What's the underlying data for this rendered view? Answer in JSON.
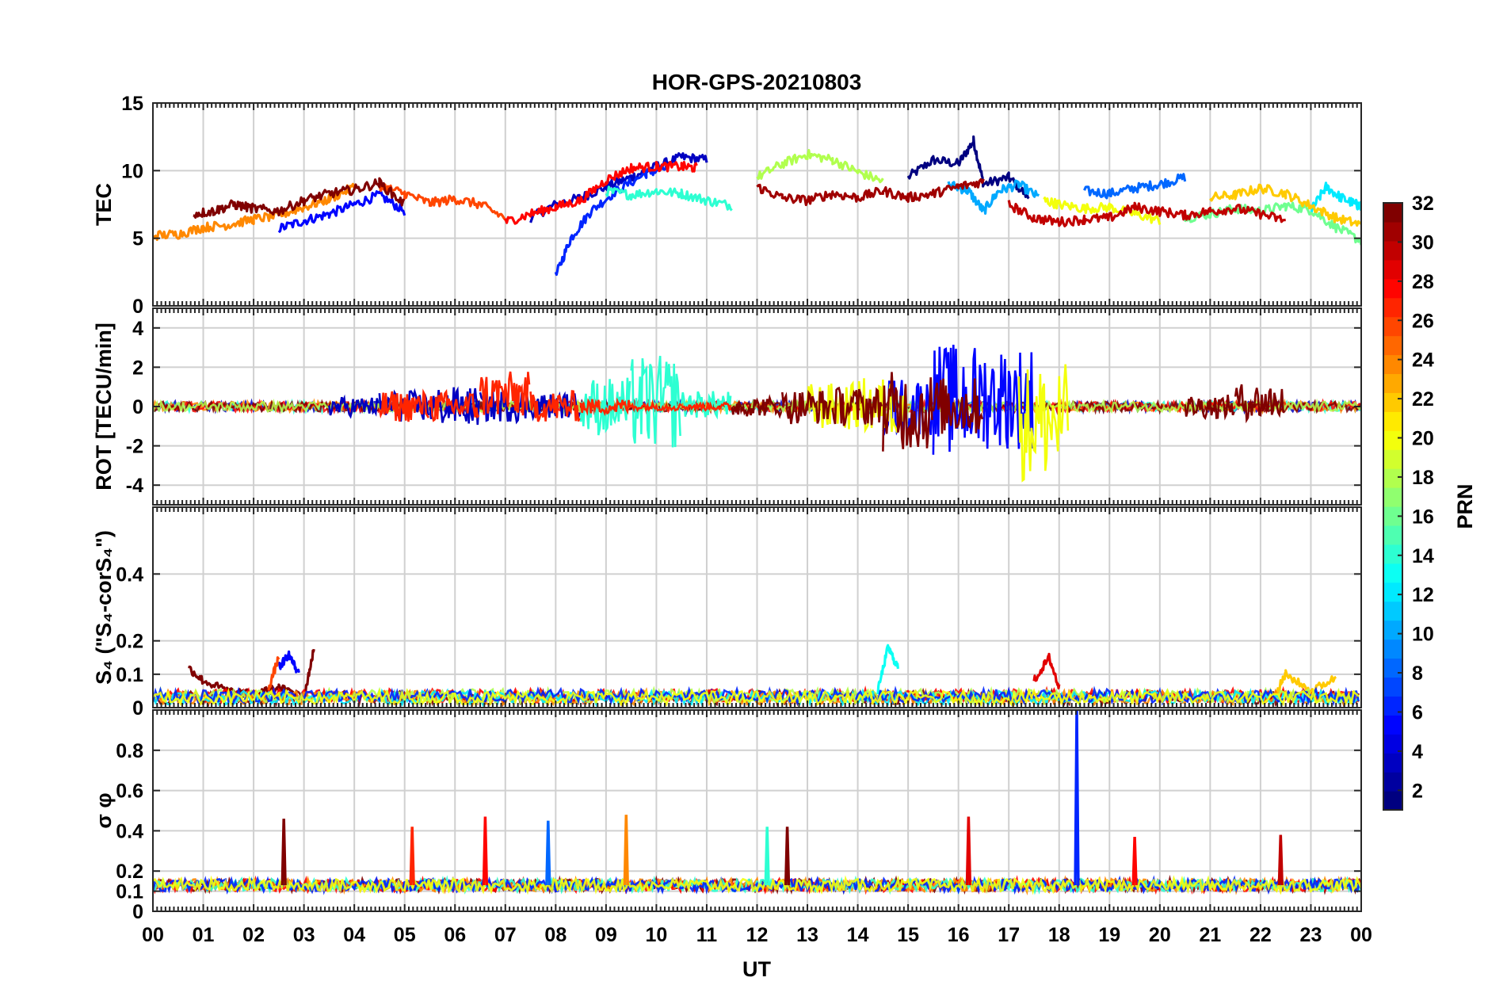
{
  "chart_data": {
    "type": "line",
    "title": "HOR-GPS-20210803",
    "xlabel": "UT",
    "x_ticks": [
      "00",
      "01",
      "02",
      "03",
      "04",
      "05",
      "06",
      "07",
      "08",
      "09",
      "10",
      "11",
      "12",
      "13",
      "14",
      "15",
      "16",
      "17",
      "18",
      "19",
      "20",
      "21",
      "22",
      "23",
      "00"
    ],
    "xlim": [
      0,
      24
    ],
    "grid": true,
    "panels": [
      {
        "id": "tec",
        "ylabel": "TEC",
        "ylim": [
          0,
          15
        ],
        "yticks": [
          "0",
          "5",
          "10",
          "15"
        ],
        "ytick_values": [
          0,
          5,
          10,
          15
        ],
        "series": [
          {
            "name": "PRN 1",
            "prn": 1,
            "x": [
              15.0,
              15.5,
              16.0,
              16.3,
              16.5,
              17.0,
              17.4
            ],
            "y": [
              9.5,
              10.8,
              10.5,
              12.2,
              9.0,
              9.5,
              8.0
            ]
          },
          {
            "name": "PRN 3",
            "prn": 3,
            "x": [
              7.5,
              8.0,
              8.5,
              9.0,
              9.5,
              10.0,
              10.5,
              11.0
            ],
            "y": [
              6.5,
              7.5,
              8.0,
              8.8,
              9.5,
              10.3,
              11.0,
              10.8
            ]
          },
          {
            "name": "PRN 5",
            "prn": 5,
            "x": [
              2.5,
              3.0,
              3.5,
              4.0,
              4.5,
              5.0
            ],
            "y": [
              5.7,
              6.3,
              6.8,
              7.5,
              8.2,
              7.0
            ]
          },
          {
            "name": "PRN 6",
            "prn": 6,
            "x": [
              8.0,
              8.3,
              8.7,
              9.2,
              9.8,
              10.2
            ],
            "y": [
              2.2,
              5.0,
              7.0,
              8.5,
              9.8,
              10.2
            ]
          },
          {
            "name": "PRN 8",
            "prn": 8,
            "x": [
              18.5,
              19.0,
              19.5,
              20.0,
              20.5
            ],
            "y": [
              8.5,
              8.3,
              8.7,
              9.0,
              9.5
            ]
          },
          {
            "name": "PRN 10",
            "prn": 10,
            "x": [
              15.8,
              16.2,
              16.5,
              16.8,
              17.2,
              17.6
            ],
            "y": [
              9.0,
              8.5,
              7.0,
              8.5,
              9.0,
              8.0
            ]
          },
          {
            "name": "PRN 12",
            "prn": 12,
            "x": [
              23.0,
              23.3,
              23.6,
              23.9,
              24.0
            ],
            "y": [
              7.0,
              8.8,
              8.0,
              7.5,
              7.3
            ]
          },
          {
            "name": "PRN 14",
            "prn": 14,
            "x": [
              9.0,
              9.5,
              10.0,
              10.5,
              11.0,
              11.5
            ],
            "y": [
              8.5,
              8.2,
              8.5,
              8.3,
              7.8,
              7.4
            ]
          },
          {
            "name": "PRN 16",
            "prn": 16,
            "x": [
              20.5,
              21.0,
              21.5,
              22.0,
              22.5,
              23.0,
              23.5,
              24.0
            ],
            "y": [
              6.5,
              6.8,
              7.2,
              7.0,
              7.4,
              7.1,
              5.8,
              4.8
            ]
          },
          {
            "name": "PRN 18",
            "prn": 18,
            "x": [
              12.0,
              12.5,
              13.0,
              13.5,
              14.0,
              14.5
            ],
            "y": [
              9.5,
              10.5,
              11.2,
              10.8,
              9.9,
              9.2
            ]
          },
          {
            "name": "PRN 20",
            "prn": 20,
            "x": [
              17.7,
              18.0,
              18.5,
              19.0,
              19.5,
              20.0
            ],
            "y": [
              7.8,
              7.5,
              7.2,
              7.3,
              6.8,
              6.3
            ]
          },
          {
            "name": "PRN 22",
            "prn": 22,
            "x": [
              21.0,
              21.5,
              22.0,
              22.5,
              23.0,
              23.5,
              24.0
            ],
            "y": [
              8.0,
              8.2,
              8.7,
              8.3,
              7.4,
              6.5,
              6.0
            ]
          },
          {
            "name": "PRN 24",
            "prn": 24,
            "x": [
              0.0,
              0.5,
              1.0,
              1.5,
              2.0,
              2.5,
              3.0,
              3.5,
              4.0
            ],
            "y": [
              5.2,
              5.3,
              5.8,
              6.0,
              6.4,
              6.7,
              7.3,
              7.9,
              8.8
            ]
          },
          {
            "name": "PRN 26",
            "prn": 26,
            "x": [
              4.5,
              5.0,
              5.5,
              6.0,
              6.5,
              7.0
            ],
            "y": [
              8.9,
              8.3,
              7.6,
              7.9,
              7.5,
              6.5
            ]
          },
          {
            "name": "PRN 28",
            "prn": 28,
            "x": [
              7.0,
              7.5,
              8.0,
              8.5,
              9.0,
              9.5,
              10.0,
              10.5,
              10.8
            ],
            "y": [
              6.2,
              6.8,
              7.3,
              7.8,
              9.3,
              10.2,
              10.3,
              10.3,
              10.2
            ]
          },
          {
            "name": "PRN 30",
            "prn": 30,
            "x": [
              17.0,
              17.5,
              18.0,
              18.5,
              19.0,
              19.5,
              20.0,
              20.5,
              21.0,
              21.5,
              22.0,
              22.5
            ],
            "y": [
              7.5,
              6.5,
              6.2,
              6.4,
              6.5,
              7.3,
              7.0,
              6.7,
              7.0,
              7.2,
              6.8,
              6.3
            ]
          },
          {
            "name": "PRN 31",
            "prn": 31,
            "x": [
              12.0,
              12.5,
              13.0,
              13.5,
              14.0,
              14.5,
              15.0,
              15.5,
              16.0,
              16.5
            ],
            "y": [
              8.8,
              8.0,
              7.8,
              8.3,
              8.0,
              8.5,
              8.0,
              8.3,
              8.8,
              9.2
            ]
          },
          {
            "name": "PRN 32",
            "prn": 32,
            "x": [
              0.8,
              1.2,
              1.6,
              2.0,
              2.5,
              3.0,
              3.5,
              4.0,
              4.5,
              5.0
            ],
            "y": [
              6.8,
              7.0,
              7.5,
              7.2,
              7.0,
              7.8,
              8.3,
              8.6,
              9.1,
              7.5
            ]
          }
        ]
      },
      {
        "id": "rot",
        "ylabel": "ROT [TECU/min]",
        "ylim": [
          -5,
          5
        ],
        "yticks": [
          "-4",
          "-2",
          "0",
          "2",
          "4"
        ],
        "ytick_values": [
          -4,
          -2,
          0,
          2,
          4
        ],
        "series": [
          {
            "name": "PRN 3",
            "prn": 3,
            "x": [
              4.0,
              5.0,
              6.0,
              7.0,
              8.0
            ],
            "y_min": [
              -0.5,
              -0.8,
              -1.0,
              -0.8,
              -0.6
            ],
            "y_max": [
              0.5,
              0.8,
              1.0,
              0.9,
              0.7
            ]
          },
          {
            "name": "PRN 5",
            "prn": 5,
            "x": [
              15.0,
              16.0,
              17.0
            ],
            "y_min": [
              -1.5,
              -2.5,
              -2.2
            ],
            "y_max": [
              1.5,
              3.2,
              3.1
            ]
          },
          {
            "name": "PRN 14",
            "prn": 14,
            "x": [
              9.0,
              10.0,
              11.0
            ],
            "y_min": [
              -1.5,
              -2.2,
              -0.6
            ],
            "y_max": [
              1.5,
              2.6,
              0.8
            ]
          },
          {
            "name": "PRN 20",
            "prn": 20,
            "x": [
              13.5,
              14.5,
              17.7
            ],
            "y_min": [
              -1.2,
              -1.5,
              -3.8
            ],
            "y_max": [
              1.2,
              1.5,
              2.2
            ]
          },
          {
            "name": "PRN 27",
            "prn": 27,
            "x": [
              5.0,
              6.0,
              7.0,
              8.0,
              9.0,
              10.0,
              11.0
            ],
            "y_min": [
              -0.8,
              -0.8,
              -0.6,
              -0.8,
              -0.4,
              -0.2,
              -0.2
            ],
            "y_max": [
              0.8,
              0.8,
              1.8,
              0.8,
              0.4,
              0.2,
              0.2
            ]
          },
          {
            "name": "PRN 32",
            "prn": 32,
            "x": [
              12.0,
              13.0,
              14.0,
              15.0,
              16.0,
              21.0,
              22.0
            ],
            "y_min": [
              -0.5,
              -0.9,
              -1.0,
              -2.3,
              -1.5,
              -0.6,
              -0.7
            ],
            "y_max": [
              0.5,
              0.9,
              1.0,
              1.8,
              1.5,
              0.6,
              1.2
            ]
          }
        ]
      },
      {
        "id": "s4",
        "ylabel": "S₄ (\"S₄-corS₄\")",
        "ylim": [
          0,
          0.6
        ],
        "yticks": [
          "0",
          "0.1",
          "0.2",
          "0.4"
        ],
        "ytick_values": [
          0,
          0.1,
          0.2,
          0.4
        ],
        "series": [
          {
            "name": "PRN 32",
            "prn": 32,
            "x": [
              0.7,
              1.0,
              1.5,
              2.0,
              2.5,
              3.0,
              3.2
            ],
            "y": [
              0.12,
              0.08,
              0.05,
              0.04,
              0.06,
              0.03,
              0.18
            ]
          },
          {
            "name": "PRN 5",
            "prn": 5,
            "x": [
              2.5,
              2.7,
              2.9
            ],
            "y": [
              0.12,
              0.16,
              0.1
            ]
          },
          {
            "name": "PRN 26",
            "prn": 26,
            "x": [
              2.3,
              2.5
            ],
            "y": [
              0.06,
              0.15
            ]
          },
          {
            "name": "PRN 13",
            "prn": 13,
            "x": [
              14.4,
              14.6,
              14.8
            ],
            "y": [
              0.05,
              0.18,
              0.12
            ]
          },
          {
            "name": "PRN 29",
            "prn": 29,
            "x": [
              17.5,
              17.8,
              18.0
            ],
            "y": [
              0.08,
              0.15,
              0.06
            ]
          },
          {
            "name": "PRN 22",
            "prn": 22,
            "x": [
              22.3,
              22.5,
              23.0,
              23.5
            ],
            "y": [
              0.04,
              0.1,
              0.05,
              0.09
            ]
          }
        ],
        "baseline_level": 0.03
      },
      {
        "id": "sigma_phi",
        "ylabel": "σ φ",
        "ylim": [
          0,
          1.0
        ],
        "yticks": [
          "0",
          "0.1",
          "0.2",
          "0.4",
          "0.6",
          "0.8"
        ],
        "ytick_values": [
          0,
          0.1,
          0.2,
          0.4,
          0.6,
          0.8
        ],
        "baseline_level": 0.13,
        "spikes": [
          {
            "prn": 32,
            "x": 2.6,
            "y": 0.46
          },
          {
            "prn": 27,
            "x": 5.15,
            "y": 0.42
          },
          {
            "prn": 28,
            "x": 6.6,
            "y": 0.47
          },
          {
            "prn": 8,
            "x": 7.85,
            "y": 0.45
          },
          {
            "prn": 24,
            "x": 9.4,
            "y": 0.48
          },
          {
            "prn": 14,
            "x": 12.2,
            "y": 0.42
          },
          {
            "prn": 32,
            "x": 12.6,
            "y": 0.42
          },
          {
            "prn": 29,
            "x": 16.2,
            "y": 0.47
          },
          {
            "prn": 6,
            "x": 18.35,
            "y": 1.0
          },
          {
            "prn": 28,
            "x": 19.5,
            "y": 0.37
          },
          {
            "prn": 30,
            "x": 22.4,
            "y": 0.38
          }
        ]
      }
    ],
    "colorbar": {
      "label": "PRN",
      "range": [
        1,
        32
      ],
      "ticks": [
        "2",
        "4",
        "6",
        "8",
        "10",
        "12",
        "14",
        "16",
        "18",
        "20",
        "22",
        "24",
        "26",
        "28",
        "30",
        "32"
      ],
      "tick_values": [
        2,
        4,
        6,
        8,
        10,
        12,
        14,
        16,
        18,
        20,
        22,
        24,
        26,
        28,
        30,
        32
      ],
      "colormap": "jet"
    }
  }
}
